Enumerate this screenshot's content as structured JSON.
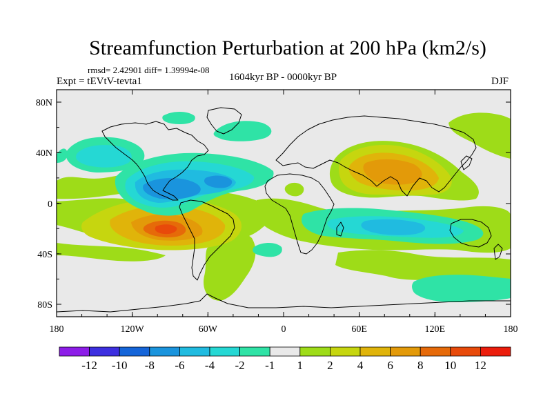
{
  "title": "Streamfunction Perturbation at 200 hPa (km2/s)",
  "stats_line": "rmsd= 2.42901 diff= 1.39994e-08",
  "experiment_line": "Expt = tEVtV-tevta1",
  "period_line": "1604kyr BP - 0000kyr BP",
  "season": "DJF",
  "lat_labels": [
    "80N",
    "40N",
    "0",
    "40S",
    "80S"
  ],
  "lon_labels": [
    "180",
    "120W",
    "60W",
    "0",
    "60E",
    "120E",
    "180"
  ],
  "colorbar": {
    "colors": [
      "#8d1de8",
      "#3d2fe0",
      "#1565d9",
      "#1a94dd",
      "#20bbe0",
      "#25d8d4",
      "#2fe3a6",
      "#e9e9e9",
      "#9edc18",
      "#c6d60f",
      "#e0b40a",
      "#e39a09",
      "#e66a09",
      "#e84a0a",
      "#eb1d0c"
    ],
    "labels": [
      "-12",
      "-10",
      "-8",
      "-6",
      "-4",
      "-2",
      "-1",
      "1",
      "2",
      "4",
      "6",
      "8",
      "10",
      "12"
    ]
  }
}
